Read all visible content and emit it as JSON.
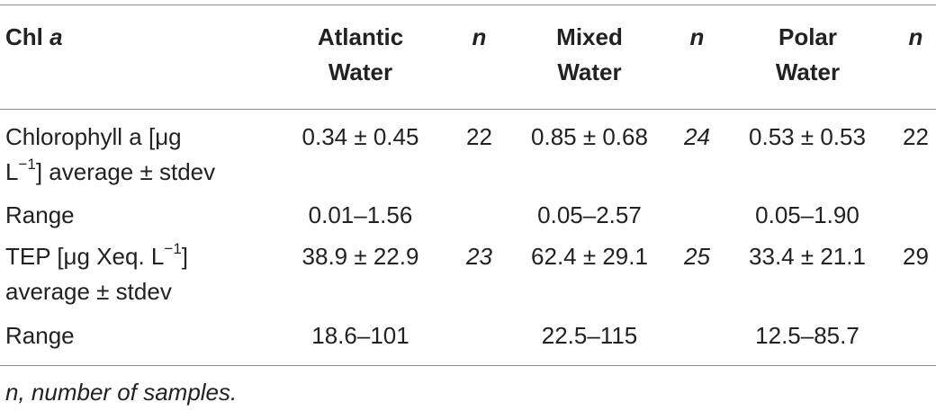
{
  "header": {
    "col0_main": "Chl",
    "col0_italic": "a",
    "atlantic_line1": "Atlantic",
    "atlantic_line2": "Water",
    "n1": "n",
    "mixed_line1": "Mixed",
    "mixed_line2": "Water",
    "n2": "n",
    "polar_line1": "Polar",
    "polar_line2": "Water",
    "n3": "n"
  },
  "rows": [
    {
      "label_line1": "Chlorophyll a [μg",
      "label_line2_pre": "L",
      "label_line2_sup": "−1",
      "label_line2_post": "] average ± stdev",
      "atlantic": "0.34 ± 0.45",
      "n1": "22",
      "mixed": "0.85 ± 0.68",
      "n2": "24",
      "polar": "0.53 ± 0.53",
      "n3": "22"
    },
    {
      "label": "Range",
      "atlantic": "0.01–1.56",
      "mixed": "0.05–2.57",
      "polar": "0.05–1.90"
    },
    {
      "label_line1_pre": "TEP [μg Xeq. L",
      "label_line1_sup": "−1",
      "label_line1_post": "]",
      "label_line2": "average ± stdev",
      "atlantic": "38.9 ± 22.9",
      "n1": "23",
      "mixed": "62.4 ± 29.1",
      "n2": "25",
      "polar": "33.4 ± 21.1",
      "n3": "29"
    },
    {
      "label": "Range",
      "atlantic": "18.6–101",
      "mixed": "22.5–115",
      "polar": "12.5–85.7"
    }
  ],
  "footnote": "n, number of samples."
}
